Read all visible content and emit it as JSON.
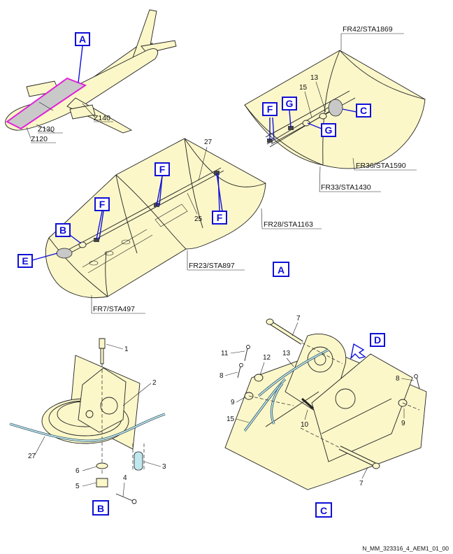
{
  "zones": {
    "z130": "Z130",
    "z120": "Z120",
    "z140": "Z140"
  },
  "frames": {
    "fr42": "FR42/STA1869",
    "fr36": "FR36/STA1590",
    "fr33": "FR33/STA1430",
    "fr28": "FR28/STA1163",
    "fr23": "FR23/STA897",
    "fr7": "FR7/STA497"
  },
  "callouts": {
    "a": "A",
    "b": "B",
    "c": "C",
    "d": "D",
    "e": "E",
    "f": "F",
    "g": "G"
  },
  "items": {
    "n1": "1",
    "n2": "2",
    "n3": "3",
    "n4": "4",
    "n5": "5",
    "n6": "6",
    "n7": "7",
    "n8": "8",
    "n9": "9",
    "n10": "10",
    "n11": "11",
    "n12": "12",
    "n13": "13",
    "n15": "15",
    "n25": "25",
    "n27": "27"
  },
  "footer": {
    "ref": "N_MM_323316_4_AEM1_01_00"
  }
}
